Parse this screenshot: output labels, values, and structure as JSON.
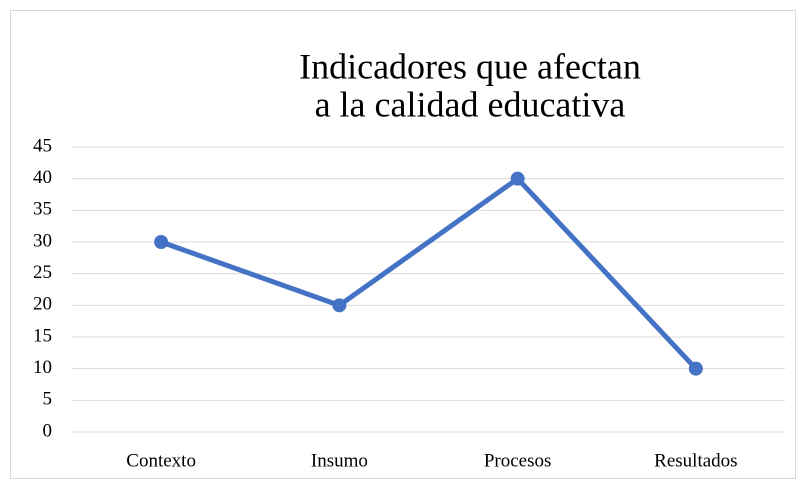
{
  "chart_data": {
    "type": "line",
    "title": [
      "Indicadores que afectan",
      "a la calidad educativa"
    ],
    "categories": [
      "Contexto",
      "Insumo",
      "Procesos",
      "Resultados"
    ],
    "series": [
      {
        "name": "Serie 1",
        "color": "#4472c4",
        "values": [
          30,
          20,
          40,
          10
        ]
      }
    ],
    "ylim": [
      0,
      45
    ],
    "yticks": [
      0,
      5,
      10,
      15,
      20,
      25,
      30,
      35,
      40,
      45
    ],
    "grid": true,
    "legend": false
  }
}
